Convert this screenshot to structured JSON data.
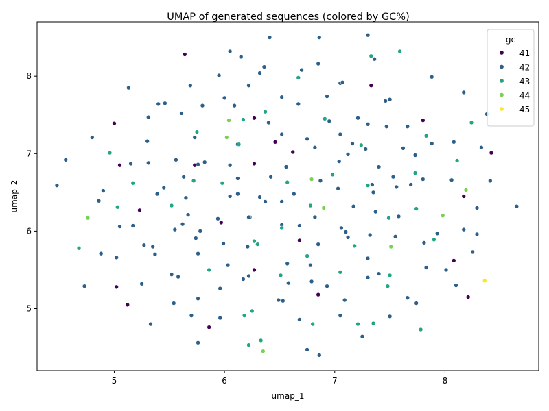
{
  "chart_data": {
    "type": "scatter",
    "title": "UMAP of generated sequences (colored by GC%)",
    "xlabel": "umap_1",
    "ylabel": "umap_2",
    "xlim": [
      4.3,
      8.85
    ],
    "ylim": [
      4.2,
      8.7
    ],
    "xticks": [
      5,
      6,
      7,
      8
    ],
    "yticks": [
      5,
      6,
      7,
      8
    ],
    "grid": false,
    "legend": {
      "title": "gc",
      "placement": "top-right",
      "entries": [
        {
          "label": "41",
          "color": "#440154"
        },
        {
          "label": "42",
          "color": "#2c5f8a"
        },
        {
          "label": "43",
          "color": "#21a685"
        },
        {
          "label": "44",
          "color": "#7ad151"
        },
        {
          "label": "45",
          "color": "#fde725"
        }
      ]
    },
    "series": [
      {
        "name": "41",
        "color": "#440154",
        "points": [
          [
            5.64,
            8.28
          ],
          [
            6.27,
            7.46
          ],
          [
            7.33,
            7.88
          ],
          [
            5.0,
            7.39
          ],
          [
            5.05,
            6.85
          ],
          [
            6.46,
            7.15
          ],
          [
            6.27,
            6.87
          ],
          [
            6.62,
            7.02
          ],
          [
            8.42,
            7.01
          ],
          [
            5.23,
            6.27
          ],
          [
            8.17,
            6.45
          ],
          [
            5.97,
            6.11
          ],
          [
            6.68,
            5.88
          ],
          [
            6.27,
            5.5
          ],
          [
            5.02,
            5.28
          ],
          [
            6.85,
            5.18
          ],
          [
            5.12,
            5.05
          ],
          [
            5.86,
            4.76
          ],
          [
            8.08,
            5.62
          ],
          [
            8.21,
            5.15
          ],
          [
            7.8,
            7.43
          ],
          [
            5.73,
            6.85
          ]
        ]
      },
      {
        "name": "42",
        "color": "#2c5f8a",
        "points": [
          [
            6.41,
            8.5
          ],
          [
            6.86,
            8.5
          ],
          [
            7.3,
            8.53
          ],
          [
            6.05,
            8.32
          ],
          [
            6.15,
            8.25
          ],
          [
            6.36,
            8.12
          ],
          [
            6.7,
            8.08
          ],
          [
            6.85,
            8.16
          ],
          [
            7.36,
            8.22
          ],
          [
            5.95,
            8.01
          ],
          [
            6.32,
            8.04
          ],
          [
            7.05,
            7.91
          ],
          [
            7.07,
            7.92
          ],
          [
            7.88,
            7.99
          ],
          [
            5.13,
            7.85
          ],
          [
            5.69,
            7.88
          ],
          [
            6.22,
            7.88
          ],
          [
            6.0,
            7.72
          ],
          [
            6.52,
            7.73
          ],
          [
            6.93,
            7.74
          ],
          [
            7.5,
            7.7
          ],
          [
            7.46,
            7.68
          ],
          [
            8.17,
            7.79
          ],
          [
            5.4,
            7.64
          ],
          [
            5.46,
            7.65
          ],
          [
            5.8,
            7.62
          ],
          [
            6.09,
            7.62
          ],
          [
            6.67,
            7.64
          ],
          [
            5.31,
            7.47
          ],
          [
            5.61,
            7.52
          ],
          [
            7.21,
            7.46
          ],
          [
            8.38,
            7.51
          ],
          [
            4.8,
            7.21
          ],
          [
            5.3,
            7.16
          ],
          [
            5.73,
            7.21
          ],
          [
            6.52,
            7.25
          ],
          [
            6.75,
            7.19
          ],
          [
            6.95,
            7.42
          ],
          [
            7.05,
            7.25
          ],
          [
            7.3,
            7.38
          ],
          [
            7.47,
            7.35
          ],
          [
            7.66,
            7.35
          ],
          [
            8.08,
            7.15
          ],
          [
            5.56,
            6.92
          ],
          [
            6.12,
            7.12
          ],
          [
            6.82,
            7.08
          ],
          [
            7.16,
            7.13
          ],
          [
            7.28,
            7.06
          ],
          [
            7.62,
            7.07
          ],
          [
            7.88,
            7.13
          ],
          [
            4.56,
            6.92
          ],
          [
            5.31,
            6.88
          ],
          [
            5.15,
            6.87
          ],
          [
            5.76,
            6.86
          ],
          [
            5.82,
            6.89
          ],
          [
            6.05,
            6.85
          ],
          [
            6.56,
            6.83
          ],
          [
            7.04,
            6.9
          ],
          [
            7.12,
            6.99
          ],
          [
            7.4,
            6.83
          ],
          [
            7.73,
            6.98
          ],
          [
            8.33,
            7.08
          ],
          [
            5.63,
            6.7
          ],
          [
            6.12,
            6.68
          ],
          [
            6.42,
            6.7
          ],
          [
            7.53,
            6.7
          ],
          [
            7.8,
            6.67
          ],
          [
            8.06,
            6.66
          ],
          [
            8.41,
            6.65
          ],
          [
            4.48,
            6.59
          ],
          [
            4.9,
            6.52
          ],
          [
            5.45,
            6.56
          ],
          [
            5.65,
            6.43
          ],
          [
            6.05,
            6.45
          ],
          [
            6.12,
            6.48
          ],
          [
            6.32,
            6.44
          ],
          [
            6.52,
            6.38
          ],
          [
            6.63,
            6.48
          ],
          [
            6.87,
            6.65
          ],
          [
            7.03,
            6.55
          ],
          [
            7.34,
            6.6
          ],
          [
            7.35,
            6.5
          ],
          [
            7.56,
            6.57
          ],
          [
            7.69,
            6.6
          ],
          [
            4.86,
            6.39
          ],
          [
            5.39,
            6.48
          ],
          [
            5.67,
            6.21
          ],
          [
            6.23,
            6.18
          ],
          [
            6.37,
            6.38
          ],
          [
            6.82,
            6.18
          ],
          [
            7.17,
            6.32
          ],
          [
            7.37,
            6.25
          ],
          [
            7.58,
            6.19
          ],
          [
            8.29,
            6.3
          ],
          [
            8.65,
            6.32
          ],
          [
            5.05,
            6.06
          ],
          [
            5.17,
            6.07
          ],
          [
            5.55,
            6.02
          ],
          [
            5.62,
            6.09
          ],
          [
            5.74,
            5.91
          ],
          [
            5.78,
            6.0
          ],
          [
            5.94,
            6.16
          ],
          [
            6.22,
            6.18
          ],
          [
            6.52,
            6.08
          ],
          [
            6.68,
            6.07
          ],
          [
            7.06,
            6.04
          ],
          [
            7.1,
            5.99
          ],
          [
            7.32,
            5.95
          ],
          [
            7.55,
            5.93
          ],
          [
            7.81,
            5.85
          ],
          [
            7.93,
            5.97
          ],
          [
            8.17,
            6.02
          ],
          [
            8.29,
            5.96
          ],
          [
            4.88,
            5.71
          ],
          [
            5.02,
            5.66
          ],
          [
            5.27,
            5.82
          ],
          [
            5.35,
            5.8
          ],
          [
            5.37,
            5.7
          ],
          [
            5.76,
            5.71
          ],
          [
            5.99,
            5.84
          ],
          [
            6.21,
            5.8
          ],
          [
            6.57,
            5.58
          ],
          [
            6.85,
            5.83
          ],
          [
            6.78,
            5.56
          ],
          [
            7.12,
            5.92
          ],
          [
            7.3,
            5.65
          ],
          [
            7.83,
            5.53
          ],
          [
            8.01,
            5.5
          ],
          [
            8.25,
            5.73
          ],
          [
            4.73,
            5.29
          ],
          [
            5.25,
            5.32
          ],
          [
            5.52,
            5.44
          ],
          [
            5.58,
            5.41
          ],
          [
            6.03,
            5.56
          ],
          [
            6.17,
            5.38
          ],
          [
            6.22,
            5.42
          ],
          [
            6.58,
            5.33
          ],
          [
            6.79,
            5.35
          ],
          [
            6.93,
            5.29
          ],
          [
            7.3,
            5.4
          ],
          [
            7.4,
            5.45
          ],
          [
            8.1,
            5.3
          ],
          [
            5.54,
            5.07
          ],
          [
            5.76,
            5.13
          ],
          [
            5.96,
            5.26
          ],
          [
            6.49,
            5.11
          ],
          [
            6.53,
            5.1
          ],
          [
            7.09,
            5.11
          ],
          [
            7.66,
            5.14
          ],
          [
            7.74,
            5.07
          ],
          [
            5.33,
            4.8
          ],
          [
            5.7,
            4.91
          ],
          [
            5.96,
            4.88
          ],
          [
            6.68,
            4.86
          ],
          [
            7.05,
            4.91
          ],
          [
            7.5,
            4.9
          ],
          [
            5.76,
            4.56
          ],
          [
            6.75,
            4.47
          ],
          [
            6.86,
            4.4
          ],
          [
            7.25,
            4.64
          ],
          [
            6.4,
            7.4
          ]
        ]
      },
      {
        "name": "43",
        "color": "#21a685",
        "points": [
          [
            7.59,
            8.32
          ],
          [
            7.33,
            8.26
          ],
          [
            6.67,
            7.98
          ],
          [
            6.17,
            7.44
          ],
          [
            6.37,
            7.54
          ],
          [
            6.91,
            7.45
          ],
          [
            8.24,
            7.4
          ],
          [
            5.75,
            7.28
          ],
          [
            6.13,
            7.12
          ],
          [
            7.24,
            7.11
          ],
          [
            4.96,
            7.01
          ],
          [
            6.98,
            6.73
          ],
          [
            7.73,
            6.75
          ],
          [
            8.11,
            6.91
          ],
          [
            5.72,
            6.65
          ],
          [
            5.98,
            6.62
          ],
          [
            6.57,
            6.63
          ],
          [
            7.3,
            6.59
          ],
          [
            7.83,
            7.23
          ],
          [
            5.03,
            6.31
          ],
          [
            5.17,
            6.62
          ],
          [
            5.52,
            6.33
          ],
          [
            6.52,
            6.04
          ],
          [
            6.78,
            6.33
          ],
          [
            7.49,
            6.17
          ],
          [
            7.74,
            6.29
          ],
          [
            7.9,
            5.89
          ],
          [
            6.27,
            5.87
          ],
          [
            6.3,
            5.83
          ],
          [
            6.75,
            5.68
          ],
          [
            7.18,
            5.81
          ],
          [
            5.86,
            5.5
          ],
          [
            6.51,
            5.43
          ],
          [
            7.05,
            5.47
          ],
          [
            7.5,
            5.43
          ],
          [
            7.48,
            5.29
          ],
          [
            6.18,
            4.91
          ],
          [
            6.25,
            4.97
          ],
          [
            6.8,
            4.8
          ],
          [
            7.21,
            4.8
          ],
          [
            7.35,
            4.81
          ],
          [
            6.22,
            4.53
          ],
          [
            6.33,
            4.59
          ],
          [
            7.78,
            4.73
          ],
          [
            4.68,
            5.78
          ]
        ]
      },
      {
        "name": "44",
        "color": "#7ad151",
        "points": [
          [
            6.04,
            7.43
          ],
          [
            6.02,
            7.21
          ],
          [
            6.79,
            6.67
          ],
          [
            6.9,
            6.3
          ],
          [
            4.76,
            6.17
          ],
          [
            7.98,
            6.2
          ],
          [
            8.19,
            6.53
          ],
          [
            7.51,
            5.8
          ],
          [
            6.35,
            4.45
          ]
        ]
      },
      {
        "name": "45",
        "color": "#fde725",
        "points": [
          [
            8.36,
            5.36
          ]
        ]
      }
    ]
  }
}
